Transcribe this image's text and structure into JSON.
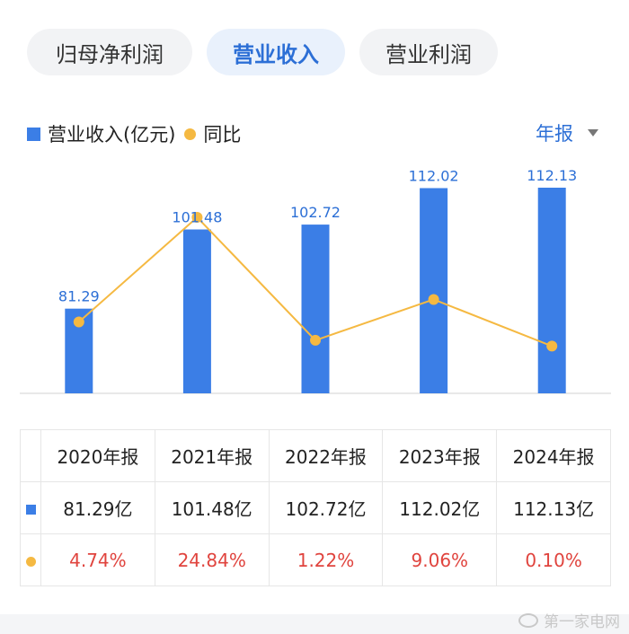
{
  "tabs": [
    {
      "label": "归母净利润",
      "active": false
    },
    {
      "label": "营业收入",
      "active": true
    },
    {
      "label": "营业利润",
      "active": false
    }
  ],
  "legend": {
    "bar_label": "营业收入(亿元)",
    "line_label": "同比"
  },
  "period_selector": {
    "label": "年报"
  },
  "colors": {
    "bar": "#3b7ee6",
    "line": "#f5b942",
    "accent": "#2c6fd6",
    "negative_text": "#e0443e"
  },
  "chart_data": {
    "type": "bar",
    "categories": [
      "2020年报",
      "2021年报",
      "2022年报",
      "2023年报",
      "2024年报"
    ],
    "series": [
      {
        "name": "营业收入(亿元)",
        "type": "bar",
        "values": [
          81.29,
          101.48,
          102.72,
          112.02,
          112.13
        ],
        "labels": [
          "81.29",
          "101.48",
          "102.72",
          "112.02",
          "112.13"
        ]
      },
      {
        "name": "同比",
        "type": "line",
        "values": [
          4.74,
          24.84,
          1.22,
          9.06,
          0.1
        ]
      }
    ]
  },
  "table": {
    "headers": [
      "2020年报",
      "2021年报",
      "2022年报",
      "2023年报",
      "2024年报"
    ],
    "revenue": [
      "81.29亿",
      "101.48亿",
      "102.72亿",
      "112.02亿",
      "112.13亿"
    ],
    "yoy": [
      "4.74%",
      "24.84%",
      "1.22%",
      "9.06%",
      "0.10%"
    ]
  },
  "watermark": "第一家电网"
}
